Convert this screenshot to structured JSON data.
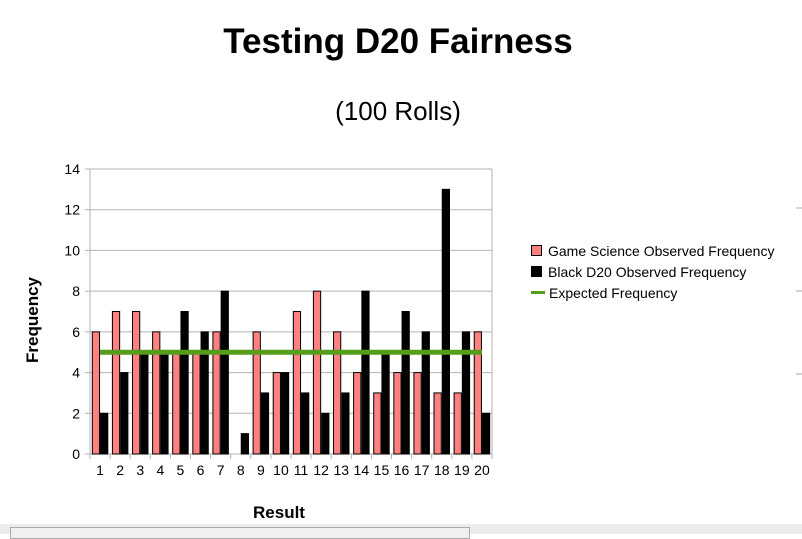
{
  "chart_data": {
    "type": "bar",
    "title": "Testing D20 Fairness",
    "subtitle": "(100 Rolls)",
    "xlabel": "Result",
    "ylabel": "Frequency",
    "ylim": [
      0,
      14
    ],
    "yticks": [
      "0",
      "2",
      "4",
      "6",
      "8",
      "10",
      "12",
      "14"
    ],
    "grid": true,
    "legend_position": "right",
    "categories": [
      "1",
      "2",
      "3",
      "4",
      "5",
      "6",
      "7",
      "8",
      "9",
      "10",
      "11",
      "12",
      "13",
      "14",
      "15",
      "16",
      "17",
      "18",
      "19",
      "20"
    ],
    "series": [
      {
        "name": "Game Science Observed Frequency",
        "type": "bar",
        "color": "#ff8080",
        "values": [
          6,
          7,
          7,
          6,
          5,
          5,
          6,
          0,
          6,
          4,
          7,
          8,
          6,
          4,
          3,
          4,
          4,
          3,
          3,
          6
        ]
      },
      {
        "name": "Black D20 Observed Frequency",
        "type": "bar",
        "color": "#000000",
        "values": [
          2,
          4,
          5,
          5,
          7,
          6,
          8,
          1,
          3,
          4,
          3,
          2,
          3,
          8,
          5,
          7,
          6,
          13,
          6,
          2
        ]
      },
      {
        "name": "Expected Frequency",
        "type": "line",
        "color": "#579d1c",
        "values": [
          5,
          5,
          5,
          5,
          5,
          5,
          5,
          5,
          5,
          5,
          5,
          5,
          5,
          5,
          5,
          5,
          5,
          5,
          5,
          5
        ]
      }
    ]
  }
}
